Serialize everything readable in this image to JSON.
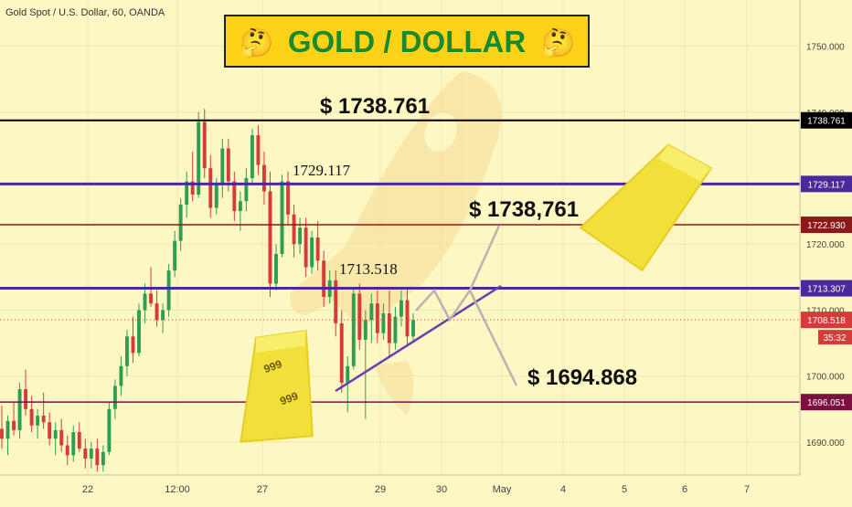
{
  "header": {
    "symbol_text": "Gold Spot / U.S. Dollar, 60, OANDA",
    "banner_title": "GOLD / DOLLAR",
    "banner_emoji": "🤔"
  },
  "colors": {
    "background": "#fdf7c4",
    "axis_bg": "#fdf7c4",
    "purple_line": "#4a2a9a",
    "dark_red_line": "#8a1a1a",
    "black_line": "#000000",
    "up_candle": "#2e9e55",
    "down_candle": "#d63b3b",
    "banner_bg": "#ffd21a",
    "banner_text": "#1a8a2a"
  },
  "chart_data": {
    "type": "candlestick",
    "symbol": "Gold Spot / U.S. Dollar",
    "timeframe": "60",
    "x_tick_labels": [
      "22",
      "12:00",
      "27",
      "29",
      "30",
      "May",
      "4",
      "5",
      "6",
      "7"
    ],
    "y_tick_labels": [
      "1750.000",
      "1740.000",
      "1720.000",
      "1710.000",
      "1700.000",
      "1690.000"
    ],
    "ylim": [
      1685,
      1757
    ],
    "grid": true,
    "horizontal_levels": [
      {
        "name": "resistance-top",
        "value": 1738.761,
        "badge": "1738.761",
        "color": "#000000"
      },
      {
        "name": "resistance-upper",
        "value": 1729.117,
        "badge": "1729.117",
        "color": "#4a2a9a"
      },
      {
        "name": "resistance-mid",
        "value": 1722.93,
        "badge": "1722.930",
        "color": "#8a1a1a"
      },
      {
        "name": "resistance-lower",
        "value": 1713.307,
        "badge": "1713.307",
        "color": "#4a2a9a"
      },
      {
        "name": "support",
        "value": 1696.051,
        "badge": "1696.051",
        "color": "#7a1040"
      }
    ],
    "current_price": {
      "value": 1708.518,
      "badge": "1708.518",
      "countdown": "35:32"
    },
    "annotations": [
      {
        "text": "$ 1738.761"
      },
      {
        "text": "1729.117"
      },
      {
        "text": "$ 1738,761"
      },
      {
        "text": "1713.518"
      },
      {
        "text": "$ 1694.868"
      },
      {
        "text": "999"
      },
      {
        "text": "999"
      }
    ],
    "candles": [
      [
        1692.0,
        1695.5,
        1689.0,
        1690.5
      ],
      [
        1690.5,
        1694.0,
        1688.0,
        1693.2
      ],
      [
        1693.2,
        1696.0,
        1691.0,
        1691.8
      ],
      [
        1691.8,
        1699.0,
        1690.5,
        1698.0
      ],
      [
        1698.0,
        1701.0,
        1694.0,
        1695.0
      ],
      [
        1695.0,
        1697.0,
        1691.5,
        1692.5
      ],
      [
        1692.5,
        1695.0,
        1690.5,
        1694.0
      ],
      [
        1694.0,
        1697.5,
        1692.0,
        1693.0
      ],
      [
        1693.0,
        1694.5,
        1689.5,
        1690.5
      ],
      [
        1690.5,
        1693.0,
        1688.0,
        1691.8
      ],
      [
        1691.8,
        1693.5,
        1688.5,
        1689.5
      ],
      [
        1689.5,
        1691.0,
        1686.5,
        1688.0
      ],
      [
        1688.0,
        1692.5,
        1687.0,
        1691.5
      ],
      [
        1691.5,
        1693.0,
        1688.5,
        1689.0
      ],
      [
        1689.0,
        1690.5,
        1686.0,
        1687.5
      ],
      [
        1687.5,
        1690.0,
        1686.0,
        1689.0
      ],
      [
        1689.0,
        1690.5,
        1685.5,
        1686.5
      ],
      [
        1686.5,
        1689.5,
        1685.5,
        1688.5
      ],
      [
        1688.5,
        1696.0,
        1688.0,
        1695.0
      ],
      [
        1695.0,
        1699.5,
        1693.5,
        1698.5
      ],
      [
        1698.5,
        1703.0,
        1697.0,
        1701.5
      ],
      [
        1701.5,
        1707.0,
        1700.0,
        1706.0
      ],
      [
        1706.0,
        1709.0,
        1702.0,
        1703.5
      ],
      [
        1703.5,
        1711.0,
        1703.0,
        1710.0
      ],
      [
        1710.0,
        1714.0,
        1708.0,
        1712.5
      ],
      [
        1712.5,
        1716.5,
        1710.5,
        1711.0
      ],
      [
        1711.0,
        1713.0,
        1707.5,
        1708.5
      ],
      [
        1708.5,
        1711.0,
        1706.5,
        1710.0
      ],
      [
        1710.0,
        1717.0,
        1709.0,
        1716.0
      ],
      [
        1716.0,
        1722.0,
        1715.0,
        1720.5
      ],
      [
        1720.5,
        1727.0,
        1719.0,
        1726.0
      ],
      [
        1726.0,
        1731.0,
        1724.0,
        1729.5
      ],
      [
        1729.5,
        1734.0,
        1726.5,
        1727.5
      ],
      [
        1727.5,
        1740.0,
        1727.0,
        1738.5
      ],
      [
        1738.5,
        1740.5,
        1730.0,
        1731.5
      ],
      [
        1731.5,
        1733.5,
        1724.0,
        1725.5
      ],
      [
        1725.5,
        1730.0,
        1724.5,
        1729.0
      ],
      [
        1729.0,
        1736.0,
        1727.0,
        1734.5
      ],
      [
        1734.5,
        1736.0,
        1728.0,
        1729.5
      ],
      [
        1729.5,
        1731.0,
        1723.5,
        1725.0
      ],
      [
        1725.0,
        1728.0,
        1722.0,
        1726.5
      ],
      [
        1726.5,
        1731.5,
        1725.0,
        1730.0
      ],
      [
        1730.0,
        1737.5,
        1729.0,
        1736.5
      ],
      [
        1736.5,
        1738.0,
        1730.5,
        1732.0
      ],
      [
        1732.0,
        1734.0,
        1726.0,
        1728.0
      ],
      [
        1728.0,
        1731.0,
        1712.0,
        1714.0
      ],
      [
        1714.0,
        1720.0,
        1713.0,
        1718.5
      ],
      [
        1718.5,
        1730.5,
        1718.0,
        1729.5
      ],
      [
        1729.5,
        1731.0,
        1723.0,
        1724.5
      ],
      [
        1724.5,
        1726.0,
        1718.0,
        1720.0
      ],
      [
        1720.0,
        1724.0,
        1718.5,
        1722.5
      ],
      [
        1722.5,
        1724.0,
        1715.0,
        1716.5
      ],
      [
        1716.5,
        1722.0,
        1715.5,
        1721.0
      ],
      [
        1721.0,
        1723.5,
        1716.0,
        1717.5
      ],
      [
        1717.5,
        1719.0,
        1710.5,
        1712.0
      ],
      [
        1712.0,
        1716.0,
        1711.0,
        1714.5
      ],
      [
        1714.5,
        1716.0,
        1706.0,
        1708.0
      ],
      [
        1708.0,
        1710.0,
        1697.5,
        1699.0
      ],
      [
        1699.0,
        1703.0,
        1694.5,
        1701.5
      ],
      [
        1701.5,
        1713.5,
        1701.0,
        1712.5
      ],
      [
        1712.5,
        1714.0,
        1704.0,
        1705.5
      ],
      [
        1705.5,
        1710.0,
        1693.5,
        1708.5
      ],
      [
        1708.5,
        1712.5,
        1705.0,
        1711.0
      ],
      [
        1711.0,
        1713.0,
        1705.0,
        1706.5
      ],
      [
        1706.5,
        1711.0,
        1705.5,
        1709.5
      ],
      [
        1709.5,
        1713.0,
        1703.0,
        1705.0
      ],
      [
        1705.0,
        1710.5,
        1704.0,
        1709.0
      ],
      [
        1709.0,
        1713.0,
        1707.5,
        1711.5
      ],
      [
        1711.5,
        1713.5,
        1704.5,
        1706.0
      ],
      [
        1706.0,
        1709.5,
        1705.0,
        1708.5
      ]
    ]
  }
}
